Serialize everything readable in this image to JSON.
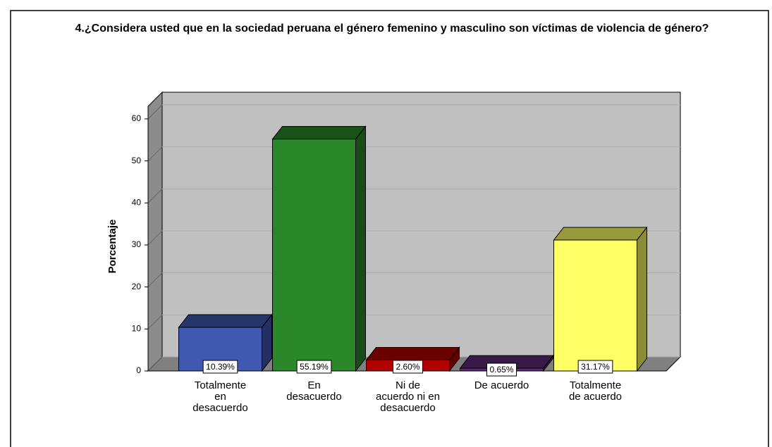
{
  "chart_data": {
    "type": "bar3d",
    "title": "4.¿Considera usted que en la sociedad peruana el género femenino y masculino son víctimas de violencia de género?",
    "ylabel": "Porcentaje",
    "categories": [
      "Totalmente en desacuerdo",
      "En desacuerdo",
      "Ni de acuerdo ni en desacuerdo",
      "De acuerdo",
      "Totalmente de acuerdo"
    ],
    "values": [
      10.39,
      55.19,
      2.6,
      0.65,
      31.17
    ],
    "value_labels": [
      "10.39%",
      "55.19%",
      "2.60%",
      "0.65%",
      "31.17%"
    ],
    "colors": [
      "#3f58b0",
      "#2a882a",
      "#b00000",
      "#5b2c7c",
      "#ffff66"
    ],
    "ylim": [
      0,
      63
    ],
    "yticks": [
      0,
      10,
      20,
      30,
      40,
      50,
      60
    ],
    "grid": true
  }
}
